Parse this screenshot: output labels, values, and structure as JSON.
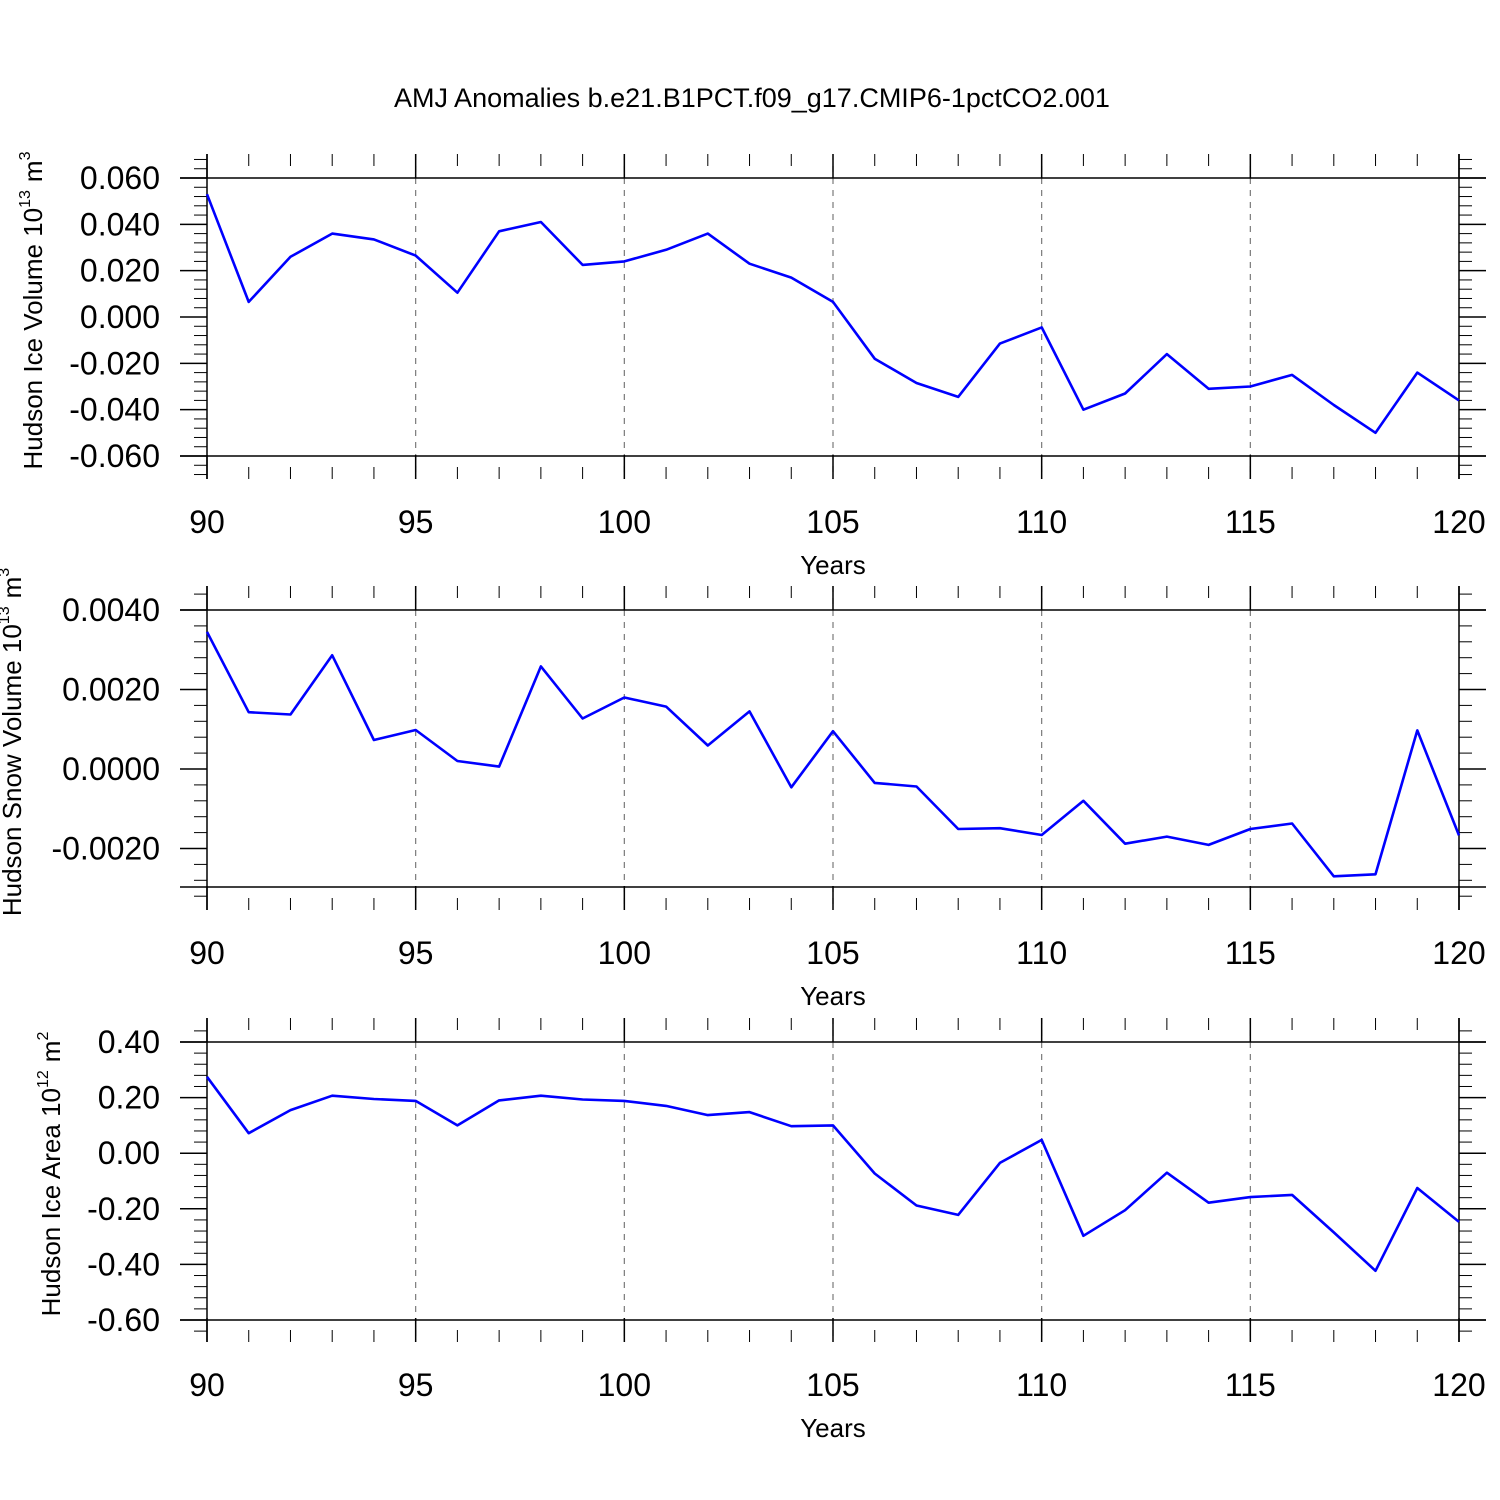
{
  "title": "AMJ Anomalies b.e21.B1PCT.f09_g17.CMIP6-1pctCO2.001",
  "line_color": "#0000ff",
  "chart_data": [
    {
      "type": "line",
      "xlabel": "Years",
      "ylabel_main": "Hudson Ice Volume 10",
      "ylabel_exp": "13",
      "ylabel_unit": "m",
      "ylabel_unit_exp": "3",
      "xlim": [
        90,
        120
      ],
      "ylim": [
        -0.06,
        0.06
      ],
      "xticks": [
        "90",
        "95",
        "100",
        "105",
        "110",
        "115",
        "120"
      ],
      "yticks": [
        "-0.060",
        "-0.040",
        "-0.020",
        "0.000",
        "0.020",
        "0.040",
        "0.060"
      ],
      "grid": "vertical-dashed",
      "x": [
        90,
        91,
        92,
        93,
        94,
        95,
        96,
        97,
        98,
        99,
        100,
        101,
        102,
        103,
        104,
        105,
        106,
        107,
        108,
        109,
        110,
        111,
        112,
        113,
        114,
        115,
        116,
        117,
        118,
        119,
        120
      ],
      "y": [
        0.053,
        0.0065,
        0.026,
        0.036,
        0.0335,
        0.0265,
        0.0105,
        0.037,
        0.041,
        0.0225,
        0.024,
        0.029,
        0.036,
        0.023,
        0.017,
        0.0065,
        -0.018,
        -0.0285,
        -0.0345,
        -0.0115,
        -0.0045,
        -0.04,
        -0.033,
        -0.016,
        -0.031,
        -0.03,
        -0.025,
        -0.038,
        -0.05,
        -0.024,
        -0.036
      ]
    },
    {
      "type": "line",
      "xlabel": "Years",
      "ylabel_main": "Hudson Snow Volume 10",
      "ylabel_exp": "13",
      "ylabel_unit": "m",
      "ylabel_unit_exp": "3",
      "xlim": [
        90,
        120
      ],
      "ylim": [
        -0.003,
        0.004
      ],
      "xticks": [
        "90",
        "95",
        "100",
        "105",
        "110",
        "115",
        "120"
      ],
      "yticks": [
        "-0.0020",
        "0.0000",
        "0.0020",
        "0.0040"
      ],
      "grid": "vertical-dashed",
      "x": [
        90,
        91,
        92,
        93,
        94,
        95,
        96,
        97,
        98,
        99,
        100,
        101,
        102,
        103,
        104,
        105,
        106,
        107,
        108,
        109,
        110,
        111,
        112,
        113,
        114,
        115,
        116,
        117,
        118,
        119,
        120
      ],
      "y": [
        0.00345,
        0.00143,
        0.00137,
        0.00286,
        0.00073,
        0.00098,
        0.0002,
        6e-05,
        0.00258,
        0.00127,
        0.0018,
        0.00157,
        0.00059,
        0.00145,
        -0.00046,
        0.00095,
        -0.00035,
        -0.00044,
        -0.00151,
        -0.00149,
        -0.00166,
        -0.0008,
        -0.00188,
        -0.0017,
        -0.00191,
        -0.00151,
        -0.00137,
        -0.0027,
        -0.00265,
        0.00097,
        -0.00167
      ]
    },
    {
      "type": "line",
      "xlabel": "Years",
      "ylabel_main": "Hudson Ice Area 10",
      "ylabel_exp": "12",
      "ylabel_unit": "m",
      "ylabel_unit_exp": "2",
      "xlim": [
        90,
        120
      ],
      "ylim": [
        -0.6,
        0.4
      ],
      "xticks": [
        "90",
        "95",
        "100",
        "105",
        "110",
        "115",
        "120"
      ],
      "yticks": [
        "-0.60",
        "-0.40",
        "-0.20",
        "0.00",
        "0.20",
        "0.40"
      ],
      "grid": "vertical-dashed",
      "x": [
        90,
        91,
        92,
        93,
        94,
        95,
        96,
        97,
        98,
        99,
        100,
        101,
        102,
        103,
        104,
        105,
        106,
        107,
        108,
        109,
        110,
        111,
        112,
        113,
        114,
        115,
        116,
        117,
        118,
        119,
        120
      ],
      "y": [
        0.275,
        0.072,
        0.155,
        0.207,
        0.195,
        0.188,
        0.1,
        0.19,
        0.207,
        0.193,
        0.188,
        0.17,
        0.137,
        0.148,
        0.097,
        0.1,
        -0.073,
        -0.188,
        -0.222,
        -0.035,
        0.048,
        -0.297,
        -0.205,
        -0.07,
        -0.178,
        -0.158,
        -0.15,
        -0.285,
        -0.423,
        -0.125,
        -0.247
      ]
    }
  ]
}
